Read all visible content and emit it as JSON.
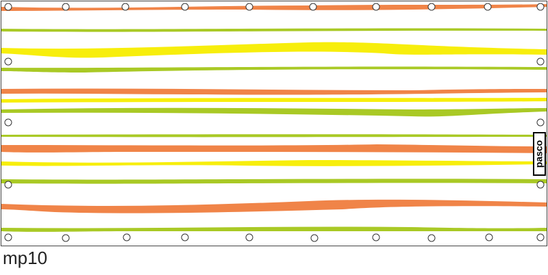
{
  "logo": "pasco",
  "caption": "mp10"
}
